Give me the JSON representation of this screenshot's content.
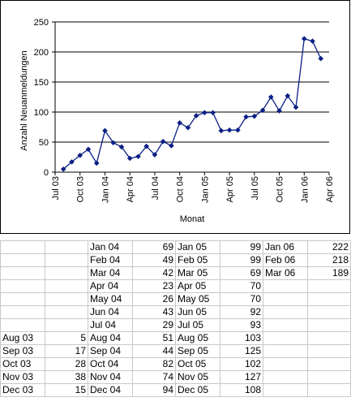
{
  "chart_data": {
    "type": "line",
    "title": "",
    "xlabel": "Monat",
    "ylabel": "Anzahl Neuanmeldungen",
    "ylim": [
      0,
      250
    ],
    "yticks": [
      0,
      50,
      100,
      150,
      200,
      250
    ],
    "grid": "horizontal",
    "legend": "none",
    "series_color": "#0b1f86",
    "xticks": [
      "Jul 03",
      "Oct 03",
      "Jan 04",
      "Apr 04",
      "Jul 04",
      "Oct 04",
      "Jan 05",
      "Apr 05",
      "Jul 05",
      "Oct 05",
      "Jan 06",
      "Apr 06"
    ],
    "categories": [
      "Aug 03",
      "Sep 03",
      "Oct 03",
      "Nov 03",
      "Dec 03",
      "Jan 04",
      "Feb 04",
      "Mar 04",
      "Apr 04",
      "May 04",
      "Jun 04",
      "Jul 04",
      "Aug 04",
      "Sep 04",
      "Oct 04",
      "Nov 04",
      "Dec 04",
      "Jan 05",
      "Feb 05",
      "Mar 05",
      "Apr 05",
      "May 05",
      "Jun 05",
      "Jul 05",
      "Aug 05",
      "Sep 05",
      "Oct 05",
      "Nov 05",
      "Dec 05",
      "Jan 06",
      "Feb 06",
      "Mar 06"
    ],
    "values": [
      5,
      17,
      28,
      38,
      15,
      69,
      49,
      42,
      23,
      26,
      43,
      29,
      51,
      44,
      82,
      74,
      94,
      99,
      99,
      69,
      70,
      70,
      92,
      93,
      103,
      125,
      102,
      127,
      108,
      222,
      218,
      189
    ]
  },
  "table": {
    "columns": [
      [
        null,
        null,
        null,
        null,
        null,
        null,
        null,
        [
          "Aug 03",
          "5"
        ],
        [
          "Sep 03",
          "17"
        ],
        [
          "Oct 03",
          "28"
        ],
        [
          "Nov 03",
          "38"
        ],
        [
          "Dec 03",
          "15"
        ]
      ],
      [
        [
          "Jan 04",
          "69"
        ],
        [
          "Feb 04",
          "49"
        ],
        [
          "Mar 04",
          "42"
        ],
        [
          "Apr 04",
          "23"
        ],
        [
          "May 04",
          "26"
        ],
        [
          "Jun 04",
          "43"
        ],
        [
          "Jul 04",
          "29"
        ],
        [
          "Aug 04",
          "51"
        ],
        [
          "Sep 04",
          "44"
        ],
        [
          "Oct 04",
          "82"
        ],
        [
          "Nov 04",
          "74"
        ],
        [
          "Dec 04",
          "94"
        ]
      ],
      [
        [
          "Jan 05",
          "99"
        ],
        [
          "Feb 05",
          "99"
        ],
        [
          "Mar 05",
          "69"
        ],
        [
          "Apr 05",
          "70"
        ],
        [
          "May 05",
          "70"
        ],
        [
          "Jun 05",
          "92"
        ],
        [
          "Jul 05",
          "93"
        ],
        [
          "Aug 05",
          "103"
        ],
        [
          "Sep 05",
          "125"
        ],
        [
          "Oct 05",
          "102"
        ],
        [
          "Nov 05",
          "127"
        ],
        [
          "Dec 05",
          "108"
        ]
      ],
      [
        [
          "Jan 06",
          "222"
        ],
        [
          "Feb 06",
          "218"
        ],
        [
          "Mar 06",
          "189"
        ],
        null,
        null,
        null,
        null,
        null,
        null,
        null,
        null,
        null
      ]
    ]
  }
}
